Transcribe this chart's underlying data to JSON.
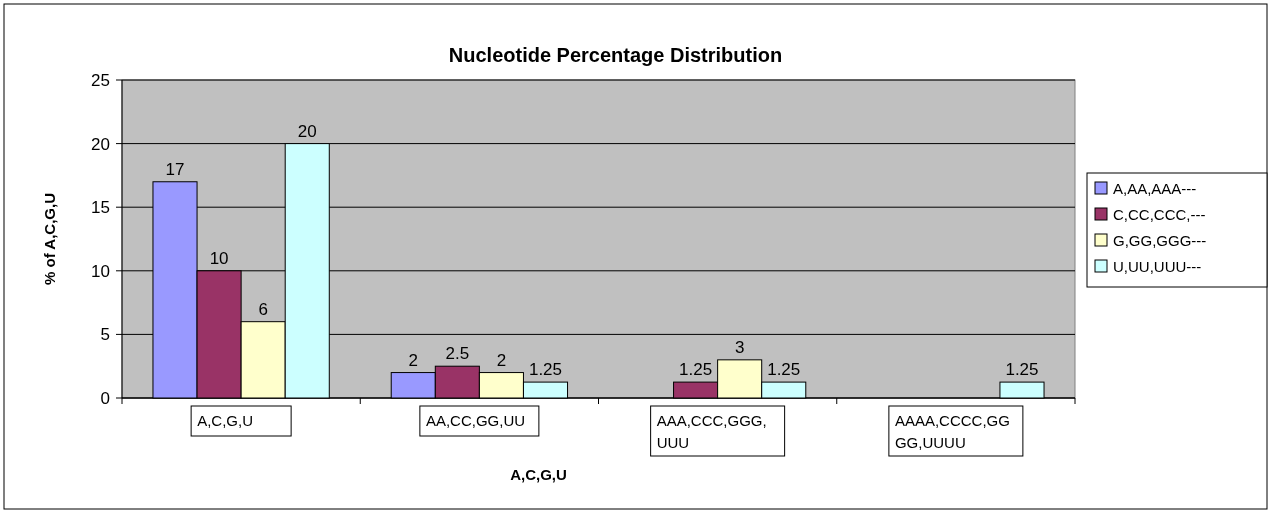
{
  "chart_data": {
    "type": "bar",
    "title": "Nucleotide Percentage Distribution",
    "xlabel": "A,C,G,U",
    "ylabel": "% of A,C,G,U",
    "categories": [
      "A,C,G,U",
      "AA,CC,GG,UU",
      "AAA,CCC,GGG,UUU",
      "AAAA,CCCC,GGGG,UUUU"
    ],
    "series": [
      {
        "name": "A,AA,AAA---",
        "color": "#9999ff",
        "values": [
          17,
          2,
          null,
          null
        ]
      },
      {
        "name": "C,CC,CCC,---",
        "color": "#993366",
        "values": [
          10,
          2.5,
          1.25,
          null
        ]
      },
      {
        "name": "G,GG,GGG---",
        "color": "#ffffcc",
        "values": [
          6,
          2,
          3,
          null
        ]
      },
      {
        "name": "U,UU,UUU---",
        "color": "#ccffff",
        "values": [
          20,
          1.25,
          1.25,
          1.25
        ]
      }
    ],
    "ylim": [
      0,
      25
    ],
    "yticks": [
      0,
      5,
      10,
      15,
      20,
      25
    ],
    "grid": "y",
    "legend": "right",
    "data_labels": true
  }
}
